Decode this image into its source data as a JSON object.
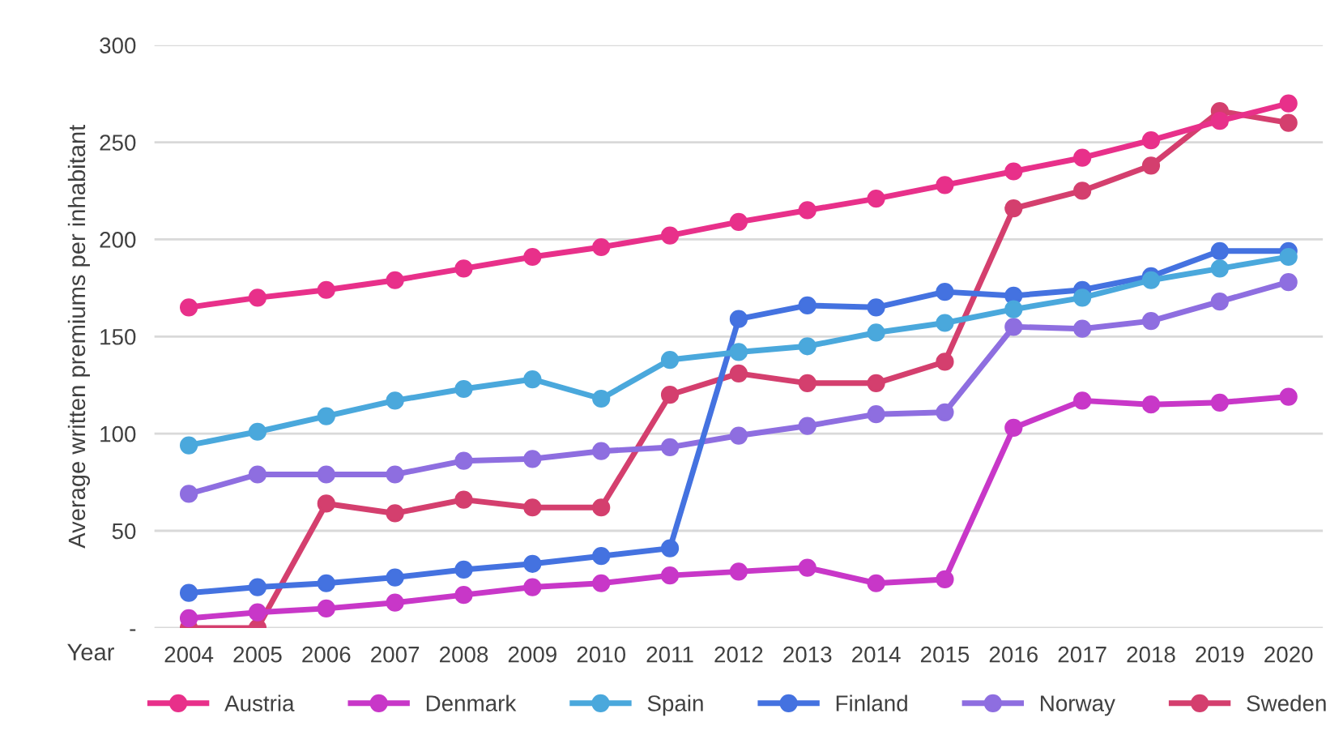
{
  "chart_data": {
    "type": "line",
    "xlabel": "Year",
    "ylabel": "Average written premiums per inhabitant",
    "categories": [
      "2004",
      "2005",
      "2006",
      "2007",
      "2008",
      "2009",
      "2010",
      "2011",
      "2012",
      "2013",
      "2014",
      "2015",
      "2016",
      "2017",
      "2018",
      "2019",
      "2020"
    ],
    "series": [
      {
        "name": "Austria",
        "color": "#e8308a",
        "values": [
          165,
          170,
          174,
          179,
          185,
          191,
          196,
          202,
          209,
          215,
          221,
          228,
          235,
          242,
          251,
          261,
          270
        ]
      },
      {
        "name": "Denmark",
        "color": "#c837c8",
        "values": [
          5,
          8,
          10,
          13,
          17,
          21,
          23,
          27,
          29,
          31,
          23,
          25,
          103,
          117,
          115,
          116,
          119
        ]
      },
      {
        "name": "Spain",
        "color": "#4aa8dc",
        "values": [
          94,
          101,
          109,
          117,
          123,
          128,
          118,
          138,
          142,
          145,
          152,
          157,
          164,
          170,
          179,
          185,
          191
        ]
      },
      {
        "name": "Finland",
        "color": "#4472e0",
        "values": [
          18,
          21,
          23,
          26,
          30,
          33,
          37,
          41,
          159,
          166,
          165,
          173,
          171,
          174,
          181,
          194,
          194
        ]
      },
      {
        "name": "Norway",
        "color": "#8e6ee0",
        "values": [
          69,
          79,
          79,
          79,
          86,
          87,
          91,
          93,
          99,
          104,
          110,
          111,
          155,
          154,
          158,
          168,
          178
        ]
      },
      {
        "name": "Sweden",
        "color": "#d43f6e",
        "values": [
          0,
          0,
          64,
          59,
          66,
          62,
          62,
          120,
          131,
          126,
          126,
          137,
          216,
          225,
          238,
          266,
          260
        ]
      }
    ],
    "ylim": [
      0,
      300
    ],
    "yticks": [
      {
        "value": 0,
        "label": "-"
      },
      50,
      100,
      150,
      200,
      250,
      300
    ],
    "grid": "y",
    "legend": "bottom",
    "marker": "circle",
    "line_style": "solid"
  }
}
